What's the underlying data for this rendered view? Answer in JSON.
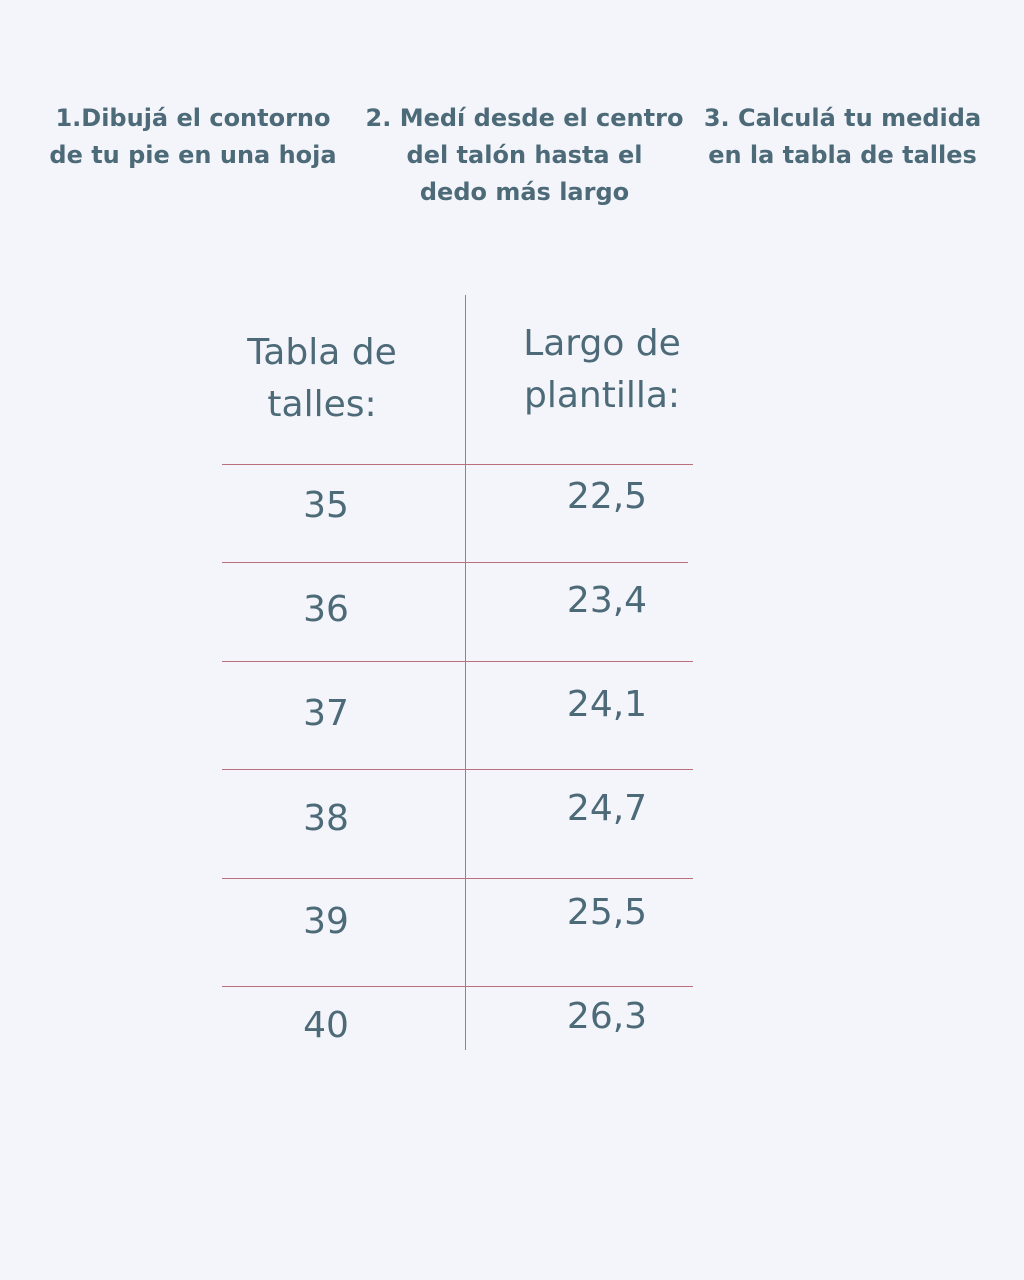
{
  "steps": [
    "1.Dibujá el contorno\nde tu pie en una hoja",
    "2. Medí desde el centro\ndel talón hasta el\ndedo más largo",
    "3. Calculá tu medida\nen la tabla de talles"
  ],
  "table": {
    "headers": [
      "Tabla de\ntalles:",
      "Largo de\nplantilla:"
    ],
    "rows": [
      {
        "size": "35",
        "length": "22,5"
      },
      {
        "size": "36",
        "length": "23,4"
      },
      {
        "size": "37",
        "length": "24,1"
      },
      {
        "size": "38",
        "length": "24,7"
      },
      {
        "size": "39",
        "length": "25,5"
      },
      {
        "size": "40",
        "length": "26,3"
      }
    ]
  },
  "colors": {
    "background": "#f4f5fa",
    "text": "#4d6a78",
    "rule": "#b9707c"
  }
}
